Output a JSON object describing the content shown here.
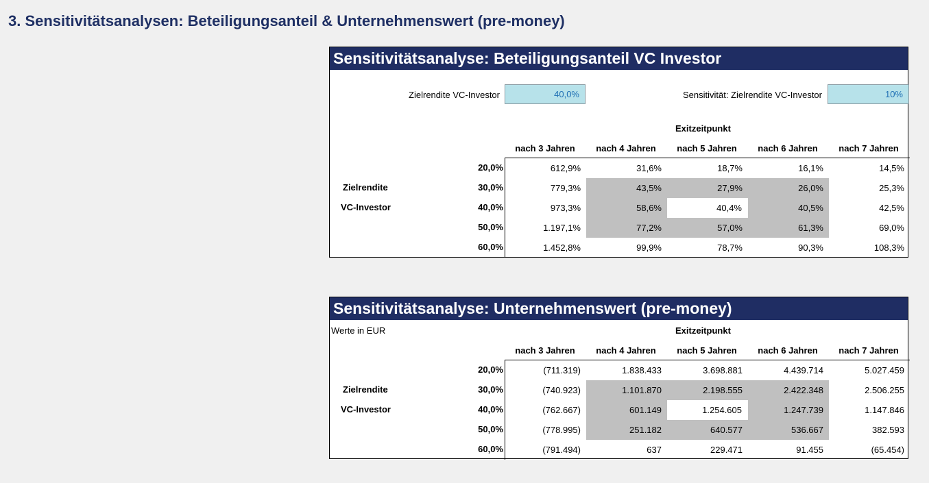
{
  "page_title": "3. Sensitivitätsanalysen: Beteiligungsanteil & Unternehmenswert (pre-money)",
  "colors": {
    "title_bar": "#1f2d63",
    "input_fill": "#b7e2ea",
    "highlight_gray": "#c0c0c0",
    "heading": "#1f3064"
  },
  "table1": {
    "title": "Sensitivitätsanalyse: Beteiligungsanteil VC Investor",
    "input1_label": "Zielrendite VC-Investor",
    "input1_value": "40,0%",
    "input2_label": "Sensitivität: Zielrendite VC-Investor",
    "input2_value": "10%",
    "col_group": "Exitzeitpunkt",
    "row_label_1": "Zielrendite",
    "row_label_2": "VC-Investor",
    "columns": [
      "nach 3 Jahren",
      "nach 4 Jahren",
      "nach 5 Jahren",
      "nach 6 Jahren",
      "nach 7 Jahren"
    ],
    "rows": [
      "20,0%",
      "30,0%",
      "40,0%",
      "50,0%",
      "60,0%"
    ],
    "values": [
      [
        "612,9%",
        "31,6%",
        "18,7%",
        "16,1%",
        "14,5%"
      ],
      [
        "779,3%",
        "43,5%",
        "27,9%",
        "26,0%",
        "25,3%"
      ],
      [
        "973,3%",
        "58,6%",
        "40,4%",
        "40,5%",
        "42,5%"
      ],
      [
        "1.197,1%",
        "77,2%",
        "57,0%",
        "61,3%",
        "69,0%"
      ],
      [
        "1.452,8%",
        "99,9%",
        "78,7%",
        "90,3%",
        "108,3%"
      ]
    ]
  },
  "table2": {
    "title": "Sensitivitätsanalyse: Unternehmenswert (pre-money)",
    "unit_note": "Werte in EUR",
    "col_group": "Exitzeitpunkt",
    "row_label_1": "Zielrendite",
    "row_label_2": "VC-Investor",
    "columns": [
      "nach 3 Jahren",
      "nach 4 Jahren",
      "nach 5 Jahren",
      "nach 6 Jahren",
      "nach 7 Jahren"
    ],
    "rows": [
      "20,0%",
      "30,0%",
      "40,0%",
      "50,0%",
      "60,0%"
    ],
    "values": [
      [
        "(711.319)",
        "1.838.433",
        "3.698.881",
        "4.439.714",
        "5.027.459"
      ],
      [
        "(740.923)",
        "1.101.870",
        "2.198.555",
        "2.422.348",
        "2.506.255"
      ],
      [
        "(762.667)",
        "601.149",
        "1.254.605",
        "1.247.739",
        "1.147.846"
      ],
      [
        "(778.995)",
        "251.182",
        "640.577",
        "536.667",
        "382.593"
      ],
      [
        "(791.494)",
        "637",
        "229.471",
        "91.455",
        "(65.454)"
      ]
    ]
  }
}
